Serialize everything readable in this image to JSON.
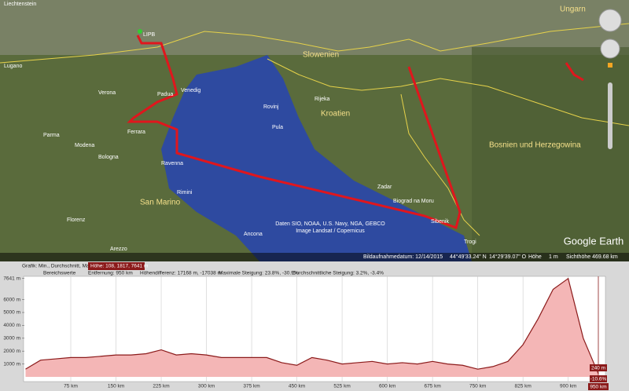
{
  "map": {
    "labels": [
      "Liechtenstein",
      "Ungarn",
      "LIPB",
      "Slowenien",
      "Kroatien",
      "Bosnien und Herzegowina",
      "San Marino",
      "Padua",
      "Venedig",
      "Ferrara",
      "Bologna",
      "Ravenna",
      "Rimini",
      "Ancona",
      "Florenz",
      "Verona",
      "Modena",
      "Parma",
      "Rijeka",
      "Pula",
      "Rovinj",
      "Zadar",
      "Biograd na Moru",
      "Sibenik",
      "Trogi",
      "Arezzo",
      "Lugano"
    ],
    "attribution": [
      "Daten SIO, NOAA, U.S. Navy, NGA, GEBCO",
      "Image Landsat / Copernicus"
    ],
    "status": {
      "date": "Bildaufnahmedatum: 12/14/2015",
      "lat": "44°49'33.24\" N",
      "lon": "14°29'39.07\" O",
      "height_label": "Höhe",
      "height": "1 m",
      "eye": "Sichthöhe 469.68 km"
    },
    "brand": "Google Earth"
  },
  "elevation_profile": {
    "header": {
      "graph": "Grafik: Min., Durchschnitt, Max.",
      "height": "Höhe: 108, 1817, 7641 m",
      "range": "Bereichswerte",
      "distance": "Entfernung: 950 km",
      "diff": "Höhendifferenz: 17168 m, -17038 m",
      "max_slope": "Maximale Steigung: 23.8%, -30.9%",
      "avg_slope": "Durchschnittliche Steigung: 3.2%, -3.4%"
    },
    "xlim": [
      0,
      950
    ],
    "ylim": [
      0,
      7641
    ],
    "xticks": [
      {
        "value": 75,
        "label": "75 km"
      },
      {
        "value": 150,
        "label": "150 km"
      },
      {
        "value": 225,
        "label": "225 km"
      },
      {
        "value": 300,
        "label": "300 km"
      },
      {
        "value": 375,
        "label": "375 km"
      },
      {
        "value": 450,
        "label": "450 km"
      },
      {
        "value": 525,
        "label": "525 km"
      },
      {
        "value": 600,
        "label": "600 km"
      },
      {
        "value": 675,
        "label": "675 km"
      },
      {
        "value": 750,
        "label": "750 km"
      },
      {
        "value": 825,
        "label": "825 km"
      },
      {
        "value": 900,
        "label": "900 km"
      }
    ],
    "yticks": [
      {
        "value": 1000,
        "label": "1000 m"
      },
      {
        "value": 2000,
        "label": "2000 m"
      },
      {
        "value": 3000,
        "label": "3000 m"
      },
      {
        "value": 4000,
        "label": "4000 m"
      },
      {
        "value": 5000,
        "label": "5000 m"
      },
      {
        "value": 6000,
        "label": "6000 m"
      },
      {
        "value": 7641,
        "label": "7641 m"
      }
    ],
    "x": [
      0,
      25,
      50,
      75,
      100,
      125,
      150,
      175,
      200,
      225,
      250,
      275,
      300,
      325,
      350,
      375,
      400,
      425,
      450,
      475,
      500,
      525,
      550,
      575,
      600,
      625,
      650,
      675,
      700,
      725,
      750,
      775,
      800,
      825,
      850,
      875,
      900,
      925,
      950
    ],
    "values": [
      600,
      1300,
      1400,
      1500,
      1500,
      1600,
      1700,
      1700,
      1800,
      2100,
      1700,
      1800,
      1700,
      1500,
      1500,
      1500,
      1500,
      1100,
      900,
      1500,
      1300,
      1000,
      1100,
      1200,
      1000,
      1100,
      1000,
      1200,
      1000,
      900,
      600,
      800,
      1200,
      2500,
      4500,
      6800,
      7641,
      3000,
      240
    ],
    "cursor": {
      "height": "240 m",
      "slope": "-10.6%",
      "distance": "950 km"
    }
  }
}
